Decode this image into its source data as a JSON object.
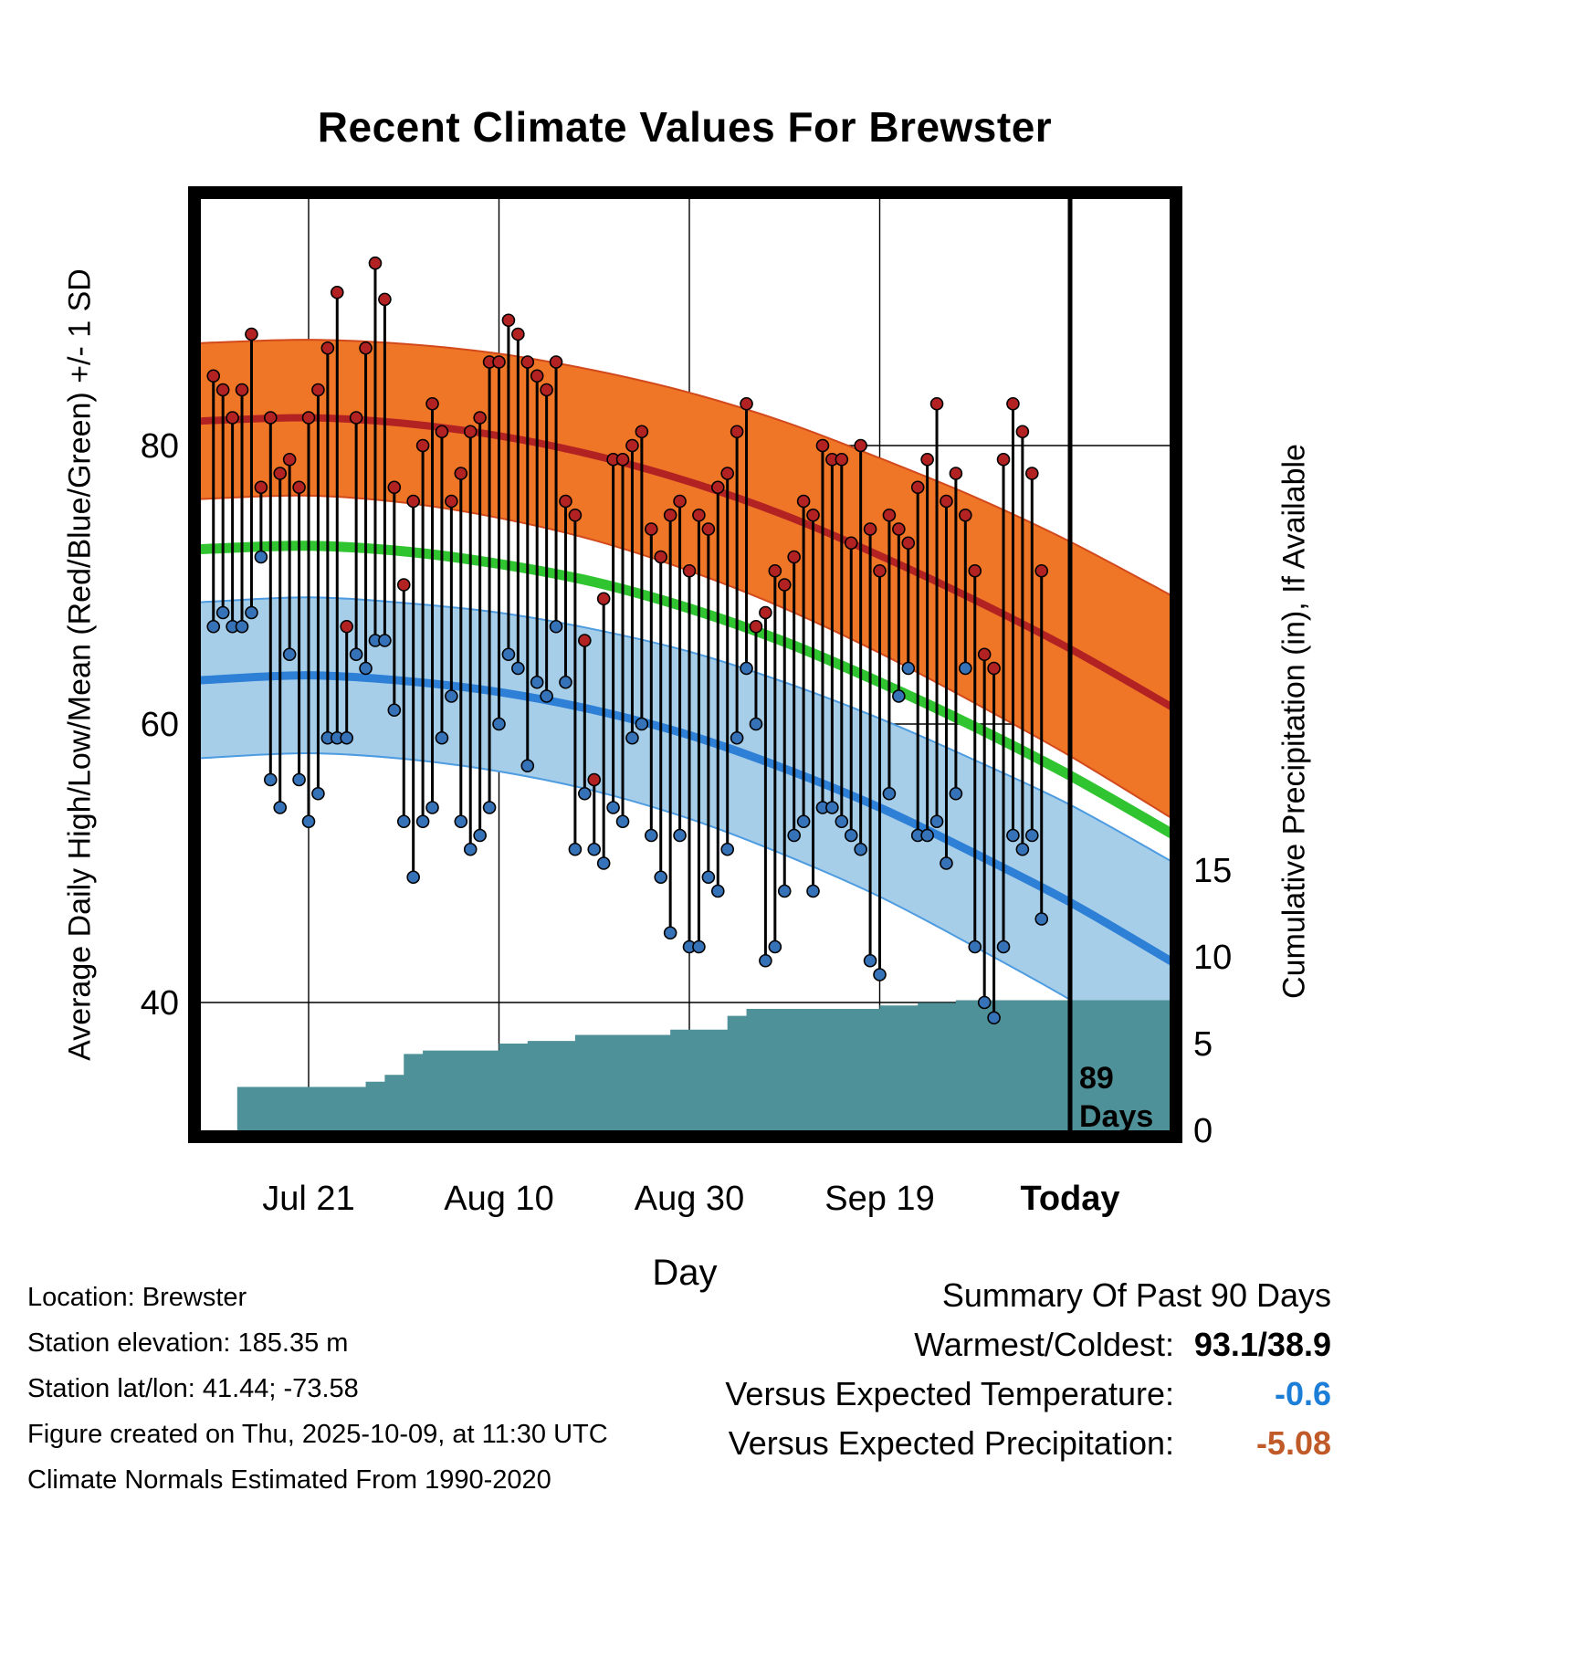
{
  "chart_data": {
    "type": "line",
    "title": "Recent Climate Values For Brewster",
    "y_left_label": "Average Daily High/Low/Mean (Red/Blue/Green) +/- 1 SD",
    "y_right_label": "Cumulative Precipitation (in), If Available",
    "x_label": "Day",
    "x_ticks": [
      {
        "day": 10,
        "label": "Jul 21"
      },
      {
        "day": 30,
        "label": "Aug 10"
      },
      {
        "day": 50,
        "label": "Aug 30"
      },
      {
        "day": 70,
        "label": "Sep 19"
      },
      {
        "day": 90,
        "label": "Today",
        "today": true
      }
    ],
    "y_ticks_left": [
      80,
      60,
      40
    ],
    "y_ticks_right": [
      15,
      10,
      5,
      0
    ],
    "y_left_range": [
      31,
      97.5
    ],
    "y_right_range_in": [
      0,
      17.6
    ],
    "x_range_days": [
      -1.3,
      100.5
    ],
    "today_marker": {
      "day": 90,
      "label_line1": "89",
      "label_line2": "Days"
    },
    "normals": {
      "days": [
        -2,
        0,
        10,
        20,
        30,
        40,
        50,
        60,
        70,
        80,
        90,
        101
      ],
      "high_mean": [
        81.7,
        81.8,
        82.0,
        81.6,
        80.7,
        79.3,
        77.4,
        75.0,
        72.1,
        68.9,
        65.4,
        61.1
      ],
      "mean": [
        72.5,
        72.6,
        72.8,
        72.4,
        71.5,
        70.2,
        68.3,
        65.9,
        63.0,
        59.8,
        56.3,
        52.0
      ],
      "low_mean": [
        63.1,
        63.2,
        63.5,
        63.1,
        62.3,
        61.0,
        59.2,
        56.8,
        54.0,
        50.7,
        47.2,
        42.8
      ],
      "high_sd": [
        5.6,
        5.6,
        5.6,
        5.7,
        5.9,
        6.1,
        6.4,
        6.7,
        7.0,
        7.4,
        7.7,
        8.0
      ],
      "low_sd": [
        5.6,
        5.6,
        5.6,
        5.6,
        5.7,
        5.8,
        6.0,
        6.2,
        6.4,
        6.7,
        7.0,
        7.2
      ]
    },
    "daily": {
      "start_day": 0,
      "highs": [
        85,
        84,
        82,
        84,
        88,
        77,
        82,
        78,
        79,
        77,
        82,
        84,
        87,
        91,
        67,
        82,
        87,
        93.1,
        90.5,
        77,
        70,
        76,
        80,
        83,
        81,
        76,
        78,
        81,
        82,
        86,
        86,
        89,
        88,
        86,
        85,
        84,
        86,
        76,
        75,
        66,
        56,
        69,
        79,
        79,
        80,
        81,
        74,
        72,
        75,
        76,
        71,
        75,
        74,
        77,
        78,
        81,
        83,
        67,
        68,
        71,
        70,
        72,
        76,
        75,
        80,
        79,
        79,
        73,
        80,
        74,
        71,
        75,
        74,
        73,
        77,
        79,
        83,
        76,
        78,
        75,
        71,
        65,
        64,
        79,
        83,
        81,
        78,
        71
      ],
      "lows": [
        67,
        68,
        67,
        67,
        68,
        72,
        56,
        54,
        65,
        56,
        53,
        55,
        59,
        59,
        59,
        65,
        64,
        66,
        66,
        61,
        53,
        49,
        53,
        54,
        59,
        62,
        53,
        51,
        52,
        54,
        60,
        65,
        64,
        57,
        63,
        62,
        67,
        63,
        51,
        55,
        51,
        50,
        54,
        53,
        59,
        60,
        52,
        49,
        45,
        52,
        44,
        44,
        49,
        48,
        51,
        59,
        64,
        60,
        43,
        44,
        48,
        52,
        53,
        48,
        54,
        54,
        53,
        52,
        51,
        43,
        42,
        55,
        62,
        64,
        52,
        52,
        53,
        50,
        55,
        64,
        44,
        40,
        38.9,
        44,
        52,
        51,
        52,
        46
      ]
    },
    "precip": {
      "units": "in",
      "steps": [
        [
          2.5,
          0
        ],
        [
          2.5,
          2.5
        ],
        [
          16,
          2.5
        ],
        [
          16,
          2.8
        ],
        [
          18,
          2.8
        ],
        [
          18,
          3.2
        ],
        [
          20,
          3.2
        ],
        [
          20,
          4.4
        ],
        [
          22,
          4.4
        ],
        [
          22,
          4.6
        ],
        [
          30,
          4.6
        ],
        [
          30,
          5.0
        ],
        [
          33,
          5.0
        ],
        [
          33,
          5.15
        ],
        [
          38,
          5.15
        ],
        [
          38,
          5.5
        ],
        [
          48,
          5.5
        ],
        [
          48,
          5.8
        ],
        [
          54,
          5.8
        ],
        [
          54,
          6.6
        ],
        [
          56,
          6.6
        ],
        [
          56,
          7.0
        ],
        [
          70,
          7.0
        ],
        [
          70,
          7.2
        ],
        [
          74,
          7.2
        ],
        [
          74,
          7.35
        ],
        [
          78,
          7.35
        ],
        [
          78,
          7.5
        ],
        [
          100.5,
          7.5
        ]
      ]
    },
    "colors": {
      "high_band": "#EF7527",
      "high_band_edge": "#D2491C",
      "high_line": "#B22222",
      "high_dot": "#B22222",
      "mean_line": "#30C430",
      "low_band": "#A6CEE9",
      "low_band_edge": "#4D9BE0",
      "low_line": "#2E7FD6",
      "low_dot": "#3572B8",
      "precip_fill": "#4E9198",
      "grid": "#000000"
    }
  },
  "footer": {
    "location": "Location: Brewster",
    "elevation": "Station elevation: 185.35 m",
    "latlon": "Station lat/lon: 41.44; -73.58",
    "created": "Figure created on Thu, 2025-10-09, at 11:30 UTC",
    "normals": "Climate Normals Estimated From 1990-2020"
  },
  "summary": {
    "title": "Summary Of Past 90 Days",
    "warmest_label": "Warmest/Coldest:",
    "warmest_value": "93.1/38.9",
    "temp_label": "Versus Expected Temperature:",
    "temp_value": "-0.6",
    "temp_value_color": "#1C7ED6",
    "precip_label": "Versus Expected Precipitation:",
    "precip_value": "-5.08",
    "precip_value_color": "#C05A28"
  }
}
